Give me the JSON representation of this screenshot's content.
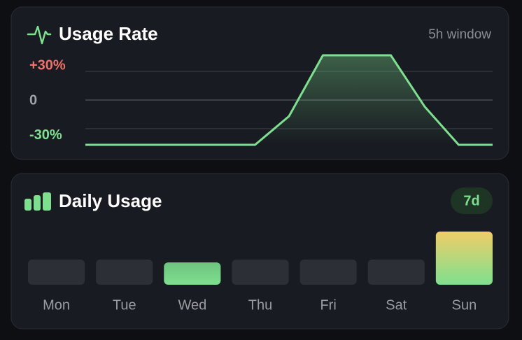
{
  "chart_data": [
    {
      "type": "line",
      "title": "Usage Rate",
      "subtitle": "5h window",
      "x": [
        0,
        5,
        6,
        7,
        9,
        10,
        11,
        12
      ],
      "xlim": [
        0,
        12
      ],
      "values": [
        -47,
        -47,
        -17,
        47,
        47,
        -7,
        -47,
        -47
      ],
      "color": "#7ee08f",
      "ylim": [
        -47,
        47
      ],
      "yticks": [
        {
          "value": 30,
          "label": "+30%"
        },
        0,
        {
          "value": -30,
          "label": "-30%"
        }
      ],
      "grid": true
    },
    {
      "type": "bar",
      "title": "Daily Usage",
      "subtitle": "7d",
      "categories": [
        "Mon",
        "Tue",
        "Wed",
        "Thu",
        "Fri",
        "Sat",
        "Sun"
      ],
      "values": [
        0,
        0,
        42,
        0,
        0,
        0,
        100
      ],
      "ylim": [
        0,
        100
      ],
      "color": "#7ee08f",
      "highlight_color": "#f0cd68"
    }
  ]
}
